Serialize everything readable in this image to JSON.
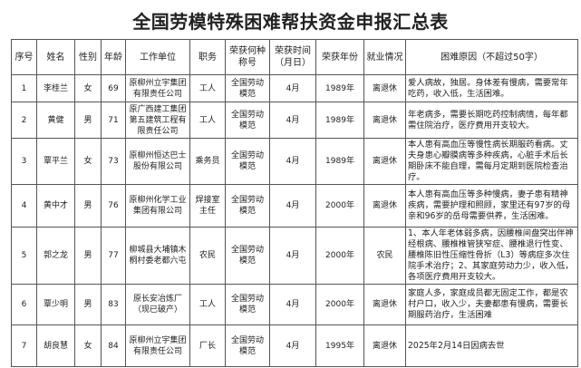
{
  "title": "全国劳模特殊困难帮扶资金申报汇总表",
  "headers": [
    "序号",
    "姓名",
    "性别",
    "年龄",
    "工作单位",
    "职务",
    "荣获何种称号",
    "荣获时间（月日）",
    "荣获年份",
    "就业情况",
    "困难原因（不超过50字）"
  ],
  "rows": [
    [
      "1",
      "李桂兰",
      "女",
      "69",
      "原柳州立宇集团有限责任公司",
      "工人",
      "全国劳动模范",
      "4月",
      "1989年",
      "离退休",
      "爱人病故，独居。身体差有慢病，需要常年吃药，收入低，生活困难。"
    ],
    [
      "2",
      "黄健",
      "男",
      "71",
      "原广西建工集团第五建筑工程有限责任公司",
      "工人",
      "全国劳动模范",
      "4月",
      "1989年",
      "离退休",
      "年老病多，需要长期吃药控制病情，每年都需住院治疗，医疗费用开支较大。"
    ],
    [
      "3",
      "覃平兰",
      "女",
      "73",
      "原柳州恒达巴士股份有限公司",
      "乘务员",
      "全国劳动模范",
      "4月",
      "1989年",
      "离退休",
      "本人患有高血压等慢性病长期服药看病。丈夫身患心瓣膜病等多种疾病，心脏手术后长期卧床不能自理，需每月定期到医院检查治疗。"
    ],
    [
      "4",
      "黄中才",
      "男",
      "76",
      "原柳州化学工业集团有限公司",
      "焊接室主任",
      "全国劳动模范",
      "4月",
      "2000年",
      "离退休",
      "本人患有高血压等多种慢病，妻子患有精神疾病，需要护理和照顾，家里还有97岁的母亲和96岁的岳母需要供养，生活困难。"
    ],
    [
      "5",
      "郭之龙",
      "男",
      "77",
      "柳城县大埔镇木桐村委老都六屯",
      "农民",
      "全国劳动模范",
      "4月",
      "2000年",
      "农民",
      "1、本人年老体弱多病，因腰椎间盘突出伴神经根病、腰椎椎管狭窄症、腰椎退行性变、腰椎陈旧性压缩性骨折（L3）等病症多次住院手术治疗；2、其家庭劳动力少，收入低，各项医疗费用开支较大。"
    ],
    [
      "6",
      "覃少明",
      "男",
      "83",
      "原长安冶炼厂（现已破产）",
      "工人",
      "全国劳动模范",
      "4月",
      "2000年",
      "离退休",
      "家庭人多，家庭成员都无固定工作，都是农村户口，收入少，夫妻都患有慢病，需要长期服药治疗，生活困难"
    ],
    [
      "7",
      "胡良慧",
      "女",
      "84",
      "原柳州立宇集团有限责任公司",
      "厂长",
      "全国劳动模范",
      "4月",
      "1995年",
      "离退休",
      "2025年2月14日因病去世"
    ]
  ]
}
